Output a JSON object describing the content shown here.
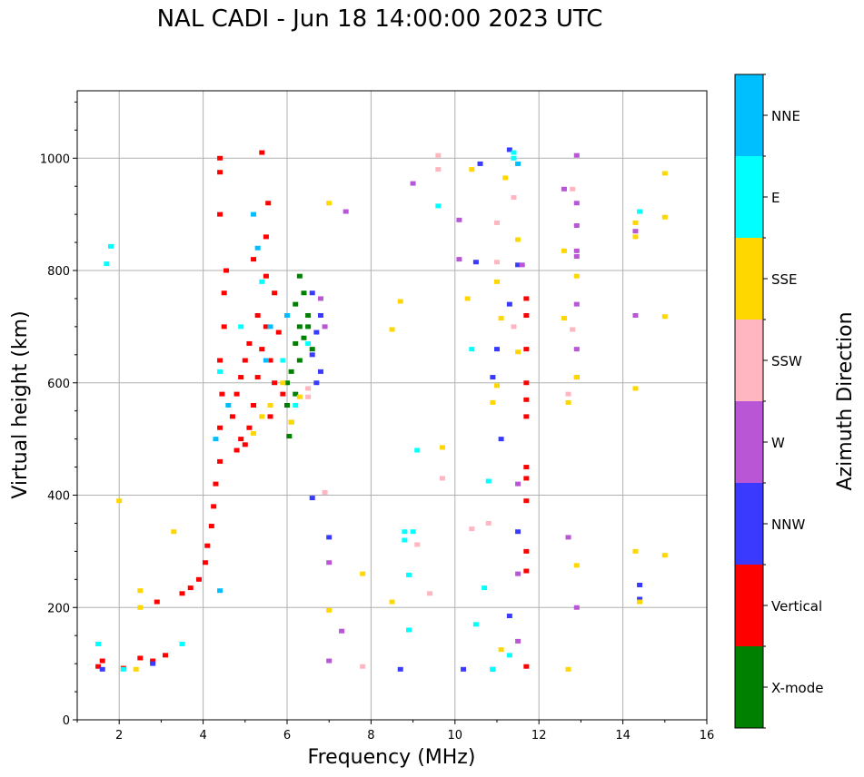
{
  "chart_data": {
    "type": "scatter",
    "title": "NAL CADI - Jun 18 14:00:00 2023 UTC",
    "xlabel": "Frequency (MHz)",
    "ylabel": "Virtual height (km)",
    "xlim": [
      1,
      16
    ],
    "ylim": [
      0,
      1120
    ],
    "xticks": [
      2,
      4,
      6,
      8,
      10,
      12,
      14,
      16
    ],
    "yticks": [
      0,
      200,
      400,
      600,
      800,
      1000
    ],
    "grid": true,
    "colorbar": {
      "label": "Azimuth Direction",
      "categories": [
        "X-mode",
        "Vertical",
        "NNW",
        "W",
        "SSW",
        "SSE",
        "E",
        "NNE"
      ],
      "colors": {
        "X-mode": "#008000",
        "Vertical": "#ff0000",
        "NNW": "#3a3aff",
        "W": "#b956d6",
        "SSW": "#ffb6c1",
        "SSE": "#ffd700",
        "E": "#00ffff",
        "NNE": "#00bfff"
      }
    },
    "series": [
      {
        "name": "Vertical",
        "points": [
          [
            1.5,
            95
          ],
          [
            1.6,
            105
          ],
          [
            2.1,
            92
          ],
          [
            2.5,
            110
          ],
          [
            2.8,
            105
          ],
          [
            3.1,
            115
          ],
          [
            2.9,
            210
          ],
          [
            3.5,
            225
          ],
          [
            3.7,
            235
          ],
          [
            3.9,
            250
          ],
          [
            4.05,
            280
          ],
          [
            4.1,
            310
          ],
          [
            4.2,
            345
          ],
          [
            4.25,
            380
          ],
          [
            4.3,
            420
          ],
          [
            4.4,
            460
          ],
          [
            4.4,
            520
          ],
          [
            4.45,
            580
          ],
          [
            4.4,
            640
          ],
          [
            4.5,
            700
          ],
          [
            4.5,
            760
          ],
          [
            4.55,
            800
          ],
          [
            4.4,
            900
          ],
          [
            4.4,
            975
          ],
          [
            4.4,
            1000
          ],
          [
            4.8,
            480
          ],
          [
            4.9,
            500
          ],
          [
            5.0,
            490
          ],
          [
            4.7,
            540
          ],
          [
            4.8,
            580
          ],
          [
            5.1,
            520
          ],
          [
            5.2,
            560
          ],
          [
            5.3,
            610
          ],
          [
            5.4,
            660
          ],
          [
            5.5,
            700
          ],
          [
            5.6,
            640
          ],
          [
            5.7,
            600
          ],
          [
            5.0,
            640
          ],
          [
            5.3,
            720
          ],
          [
            5.5,
            790
          ],
          [
            5.5,
            860
          ],
          [
            5.7,
            760
          ],
          [
            5.8,
            690
          ],
          [
            5.6,
            540
          ],
          [
            5.9,
            580
          ],
          [
            5.4,
            1010
          ],
          [
            5.55,
            920
          ],
          [
            5.2,
            820
          ],
          [
            4.9,
            610
          ],
          [
            5.1,
            670
          ],
          [
            11.7,
            750
          ],
          [
            11.7,
            720
          ],
          [
            11.7,
            660
          ],
          [
            11.7,
            600
          ],
          [
            11.7,
            570
          ],
          [
            11.7,
            540
          ],
          [
            11.7,
            450
          ],
          [
            11.7,
            430
          ],
          [
            11.7,
            390
          ],
          [
            11.7,
            300
          ],
          [
            11.7,
            265
          ],
          [
            11.7,
            95
          ]
        ]
      },
      {
        "name": "X-mode",
        "points": [
          [
            6.3,
            790
          ],
          [
            6.4,
            760
          ],
          [
            6.2,
            740
          ],
          [
            6.5,
            720
          ],
          [
            6.3,
            700
          ],
          [
            6.4,
            680
          ],
          [
            6.6,
            660
          ],
          [
            6.3,
            640
          ],
          [
            6.1,
            620
          ],
          [
            6.0,
            600
          ],
          [
            6.2,
            580
          ],
          [
            6.0,
            560
          ],
          [
            6.1,
            530
          ],
          [
            6.05,
            505
          ],
          [
            6.5,
            700
          ],
          [
            6.2,
            670
          ]
        ]
      },
      {
        "name": "NNW",
        "points": [
          [
            1.6,
            90
          ],
          [
            2.8,
            100
          ],
          [
            6.6,
            760
          ],
          [
            6.8,
            720
          ],
          [
            6.7,
            690
          ],
          [
            6.6,
            650
          ],
          [
            6.8,
            620
          ],
          [
            6.7,
            600
          ],
          [
            6.6,
            395
          ],
          [
            7.0,
            325
          ],
          [
            8.7,
            90
          ],
          [
            10.2,
            90
          ],
          [
            10.9,
            90
          ],
          [
            10.6,
            990
          ],
          [
            11.3,
            1015
          ],
          [
            11.5,
            810
          ],
          [
            11.3,
            740
          ],
          [
            11.0,
            660
          ],
          [
            10.9,
            610
          ],
          [
            11.1,
            500
          ],
          [
            11.5,
            335
          ],
          [
            11.3,
            185
          ],
          [
            10.5,
            815
          ],
          [
            14.4,
            240
          ],
          [
            14.4,
            215
          ]
        ]
      },
      {
        "name": "W",
        "points": [
          [
            6.8,
            750
          ],
          [
            6.9,
            700
          ],
          [
            7.4,
            905
          ],
          [
            7.3,
            158
          ],
          [
            7.0,
            280
          ],
          [
            7.0,
            105
          ],
          [
            9.0,
            955
          ],
          [
            10.1,
            890
          ],
          [
            10.1,
            820
          ],
          [
            11.5,
            420
          ],
          [
            11.6,
            810
          ],
          [
            12.6,
            945
          ],
          [
            12.9,
            1005
          ],
          [
            12.9,
            920
          ],
          [
            12.9,
            880
          ],
          [
            12.9,
            835
          ],
          [
            12.9,
            825
          ],
          [
            12.9,
            740
          ],
          [
            12.9,
            660
          ],
          [
            12.9,
            610
          ],
          [
            12.7,
            325
          ],
          [
            12.9,
            200
          ],
          [
            14.3,
            870
          ],
          [
            14.3,
            720
          ],
          [
            11.5,
            260
          ],
          [
            11.5,
            140
          ]
        ]
      },
      {
        "name": "SSW",
        "points": [
          [
            9.6,
            1005
          ],
          [
            9.6,
            980
          ],
          [
            12.8,
            945
          ],
          [
            12.8,
            695
          ],
          [
            12.7,
            580
          ],
          [
            11.4,
            930
          ],
          [
            11.0,
            885
          ],
          [
            11.0,
            815
          ],
          [
            11.4,
            700
          ],
          [
            10.8,
            350
          ],
          [
            10.4,
            340
          ],
          [
            9.7,
            430
          ],
          [
            9.4,
            225
          ],
          [
            9.1,
            312
          ],
          [
            6.9,
            405
          ],
          [
            7.8,
            95
          ],
          [
            6.5,
            590
          ],
          [
            6.5,
            575
          ]
        ]
      },
      {
        "name": "SSE",
        "points": [
          [
            2.5,
            230
          ],
          [
            2.5,
            200
          ],
          [
            2.4,
            90
          ],
          [
            2.0,
            390
          ],
          [
            3.3,
            335
          ],
          [
            5.2,
            510
          ],
          [
            5.4,
            540
          ],
          [
            5.6,
            560
          ],
          [
            5.9,
            600
          ],
          [
            6.3,
            575
          ],
          [
            6.1,
            530
          ],
          [
            7.0,
            920
          ],
          [
            8.5,
            695
          ],
          [
            8.7,
            745
          ],
          [
            9.7,
            485
          ],
          [
            10.3,
            750
          ],
          [
            10.4,
            980
          ],
          [
            11.0,
            780
          ],
          [
            11.1,
            715
          ],
          [
            11.0,
            595
          ],
          [
            10.9,
            565
          ],
          [
            11.1,
            125
          ],
          [
            11.5,
            655
          ],
          [
            11.5,
            855
          ],
          [
            11.2,
            965
          ],
          [
            12.6,
            835
          ],
          [
            12.6,
            715
          ],
          [
            12.7,
            565
          ],
          [
            12.9,
            790
          ],
          [
            12.9,
            610
          ],
          [
            12.9,
            275
          ],
          [
            12.7,
            90
          ],
          [
            14.3,
            885
          ],
          [
            14.3,
            860
          ],
          [
            14.3,
            590
          ],
          [
            14.3,
            300
          ],
          [
            14.4,
            210
          ],
          [
            15.0,
            973
          ],
          [
            15.0,
            895
          ],
          [
            15.0,
            718
          ],
          [
            15.0,
            293
          ],
          [
            7.8,
            260
          ],
          [
            8.5,
            210
          ],
          [
            7.0,
            195
          ]
        ]
      },
      {
        "name": "E",
        "points": [
          [
            1.5,
            135
          ],
          [
            1.8,
            843
          ],
          [
            1.7,
            812
          ],
          [
            2.1,
            90
          ],
          [
            3.5,
            135
          ],
          [
            5.4,
            780
          ],
          [
            4.9,
            700
          ],
          [
            4.4,
            620
          ],
          [
            6.2,
            560
          ],
          [
            5.9,
            640
          ],
          [
            6.5,
            670
          ],
          [
            8.8,
            335
          ],
          [
            8.8,
            320
          ],
          [
            9.0,
            335
          ],
          [
            9.1,
            480
          ],
          [
            8.9,
            258
          ],
          [
            8.9,
            160
          ],
          [
            9.6,
            915
          ],
          [
            10.8,
            425
          ],
          [
            10.9,
            90
          ],
          [
            11.4,
            1010
          ],
          [
            11.4,
            1000
          ],
          [
            10.4,
            660
          ],
          [
            14.4,
            905
          ],
          [
            10.7,
            235
          ],
          [
            11.3,
            115
          ],
          [
            10.5,
            170
          ]
        ]
      },
      {
        "name": "NNE",
        "points": [
          [
            4.4,
            230
          ],
          [
            4.3,
            500
          ],
          [
            4.6,
            560
          ],
          [
            5.3,
            840
          ],
          [
            5.6,
            700
          ],
          [
            5.5,
            640
          ],
          [
            6.0,
            720
          ],
          [
            5.2,
            900
          ],
          [
            11.5,
            990
          ]
        ]
      }
    ]
  }
}
